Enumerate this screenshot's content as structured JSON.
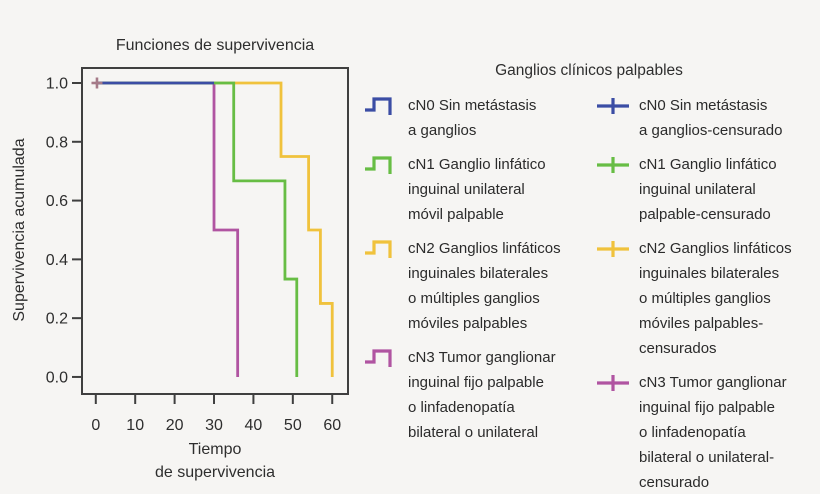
{
  "chart_data": {
    "type": "line",
    "subtype": "kaplan-meier-step",
    "title": "Funciones de supervivencia",
    "xlabel": [
      "Tiempo",
      "de supervivencia"
    ],
    "ylabel": "Supervivencia acumulada",
    "xlim": [
      -3.5,
      64
    ],
    "ylim": [
      -0.058,
      1.051
    ],
    "xticks": [
      0,
      10,
      20,
      30,
      40,
      50,
      60
    ],
    "yticks": [
      0.0,
      0.2,
      0.4,
      0.6,
      0.8,
      1.0
    ],
    "grid": false,
    "legend_position": "right",
    "draw_order": [
      2,
      3,
      1,
      0
    ],
    "series": [
      {
        "key": "cN0",
        "name": "cN0 Sin metástasis a ganglios",
        "color": "#3b4da4",
        "points": [
          [
            0,
            1.0
          ],
          [
            30,
            1.0
          ]
        ]
      },
      {
        "key": "cN1",
        "name": "cN1 Ganglio linfático inguinal unilateral móvil palpable",
        "color": "#67bd44",
        "points": [
          [
            0,
            1.0
          ],
          [
            35,
            1.0
          ],
          [
            35,
            0.667
          ],
          [
            48,
            0.667
          ],
          [
            48,
            0.333
          ],
          [
            51,
            0.333
          ],
          [
            51,
            0.0
          ]
        ]
      },
      {
        "key": "cN2",
        "name": "cN2 Ganglios linfáticos inguinales bilaterales o múltiples ganglios móviles palpables",
        "color": "#f0c23c",
        "points": [
          [
            0,
            1.0
          ],
          [
            47,
            1.0
          ],
          [
            47,
            0.75
          ],
          [
            54,
            0.75
          ],
          [
            54,
            0.5
          ],
          [
            57,
            0.5
          ],
          [
            57,
            0.25
          ],
          [
            60,
            0.25
          ],
          [
            60,
            0.0
          ]
        ]
      },
      {
        "key": "cN3",
        "name": "cN3 Tumor ganglionar inguinal fijo palpable o linfadenopatía bilateral o unilateral",
        "color": "#b054a1",
        "points": [
          [
            0,
            1.0
          ],
          [
            30,
            1.0
          ],
          [
            30,
            0.5
          ],
          [
            36,
            0.5
          ],
          [
            36,
            0.0
          ]
        ]
      }
    ],
    "censor_marks": [
      {
        "series": "cN0",
        "x": 0.3,
        "y": 1.0,
        "color": "#a57a88"
      }
    ]
  },
  "legend": {
    "title": "Ganglios clínicos palpables",
    "left_column": [
      {
        "key": "cN0",
        "color": "#3b4da4",
        "lines": [
          "cN0 Sin metástasis",
          "a ganglios"
        ]
      },
      {
        "key": "cN1",
        "color": "#67bd44",
        "lines": [
          "cN1 Ganglio linfático",
          "inguinal unilateral",
          "móvil palpable"
        ]
      },
      {
        "key": "cN2",
        "color": "#f0c23c",
        "lines": [
          "cN2 Ganglios linfáticos",
          "inguinales bilaterales",
          "o múltiples ganglios",
          "móviles palpables"
        ]
      },
      {
        "key": "cN3",
        "color": "#b054a1",
        "lines": [
          "cN3 Tumor ganglionar",
          "inguinal fijo palpable",
          "o linfadenopatía",
          "bilateral o unilateral"
        ]
      }
    ],
    "right_column": [
      {
        "key": "cN0-censurado",
        "color": "#3b4da4",
        "lines": [
          "cN0 Sin metástasis",
          "a ganglios-censurado"
        ]
      },
      {
        "key": "cN1-censurado",
        "color": "#67bd44",
        "lines": [
          "cN1 Ganglio linfático",
          "inguinal unilateral",
          "palpable-censurado"
        ]
      },
      {
        "key": "cN2-censurados",
        "color": "#f0c23c",
        "lines": [
          "cN2 Ganglios linfáticos",
          "inguinales bilaterales",
          "o múltiples ganglios",
          "móviles palpables-",
          "censurados"
        ]
      },
      {
        "key": "cN3-censurado",
        "color": "#b054a1",
        "lines": [
          "cN3 Tumor ganglionar",
          "inguinal fijo palpable",
          "o linfadenopatía",
          "bilateral o unilateral-",
          "censurado"
        ]
      }
    ]
  },
  "colors": {
    "background": "#f6f5f3",
    "axis": "#3f3f3f",
    "text": "#2e2e2e",
    "censor_mark": "#a57a88"
  }
}
